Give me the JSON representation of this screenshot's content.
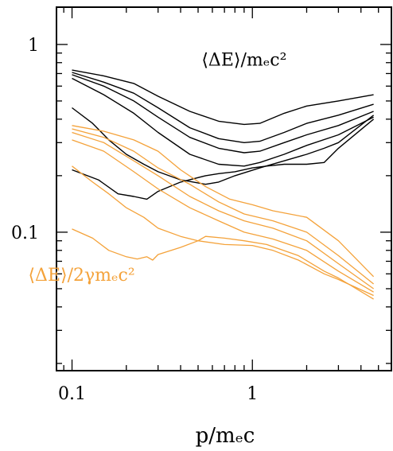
{
  "chart_data": {
    "type": "line",
    "xlabel": "p/mₑc",
    "ylabel": "",
    "xscale": "log",
    "yscale": "log",
    "xlim": [
      0.082,
      5.9
    ],
    "ylim": [
      0.0183,
      1.58
    ],
    "x_ticks": [
      {
        "value": 0.1,
        "label": "0.1"
      },
      {
        "value": 1,
        "label": "1"
      }
    ],
    "y_ticks": [
      {
        "value": 0.1,
        "label": "0.1"
      },
      {
        "value": 1,
        "label": "1"
      }
    ],
    "colors": {
      "black_group": "#000000",
      "orange_group": "#f4a23a"
    },
    "annotations": [
      {
        "text": "⟨ΔE⟩/mₑc²",
        "color": "#000000",
        "anchor": [
          0.9,
          0.77
        ]
      },
      {
        "text": "⟨ΔE⟩/2γmₑc²",
        "color": "#f4a23a",
        "anchor": [
          0.113,
          0.055
        ]
      }
    ],
    "series": [
      {
        "group": "black",
        "color": "#000000",
        "points": [
          [
            0.1,
            0.73
          ],
          [
            0.15,
            0.68
          ],
          [
            0.22,
            0.62
          ],
          [
            0.3,
            0.53
          ],
          [
            0.45,
            0.44
          ],
          [
            0.65,
            0.39
          ],
          [
            0.9,
            0.375
          ],
          [
            1.1,
            0.38
          ],
          [
            1.5,
            0.43
          ],
          [
            2,
            0.47
          ],
          [
            3,
            0.5
          ],
          [
            4.7,
            0.54
          ]
        ]
      },
      {
        "group": "black",
        "color": "#000000",
        "points": [
          [
            0.1,
            0.71
          ],
          [
            0.15,
            0.63
          ],
          [
            0.22,
            0.55
          ],
          [
            0.3,
            0.46
          ],
          [
            0.45,
            0.36
          ],
          [
            0.65,
            0.315
          ],
          [
            0.9,
            0.3
          ],
          [
            1.1,
            0.305
          ],
          [
            1.5,
            0.34
          ],
          [
            2,
            0.38
          ],
          [
            3,
            0.42
          ],
          [
            4.7,
            0.48
          ]
        ]
      },
      {
        "group": "black",
        "color": "#000000",
        "points": [
          [
            0.1,
            0.69
          ],
          [
            0.15,
            0.6
          ],
          [
            0.22,
            0.5
          ],
          [
            0.3,
            0.41
          ],
          [
            0.45,
            0.32
          ],
          [
            0.65,
            0.28
          ],
          [
            0.9,
            0.265
          ],
          [
            1.1,
            0.27
          ],
          [
            1.5,
            0.3
          ],
          [
            2,
            0.33
          ],
          [
            3,
            0.37
          ],
          [
            4.7,
            0.44
          ]
        ]
      },
      {
        "group": "black",
        "color": "#000000",
        "points": [
          [
            0.1,
            0.66
          ],
          [
            0.15,
            0.54
          ],
          [
            0.22,
            0.43
          ],
          [
            0.3,
            0.34
          ],
          [
            0.45,
            0.26
          ],
          [
            0.65,
            0.23
          ],
          [
            0.9,
            0.225
          ],
          [
            1.1,
            0.235
          ],
          [
            1.5,
            0.26
          ],
          [
            2,
            0.29
          ],
          [
            3,
            0.33
          ],
          [
            4.7,
            0.41
          ]
        ]
      },
      {
        "group": "black",
        "color": "#000000",
        "points": [
          [
            0.1,
            0.46
          ],
          [
            0.13,
            0.38
          ],
          [
            0.16,
            0.31
          ],
          [
            0.2,
            0.26
          ],
          [
            0.25,
            0.23
          ],
          [
            0.3,
            0.21
          ],
          [
            0.4,
            0.19
          ],
          [
            0.55,
            0.18
          ],
          [
            0.65,
            0.185
          ],
          [
            0.8,
            0.2
          ],
          [
            1.1,
            0.22
          ],
          [
            1.5,
            0.24
          ],
          [
            2,
            0.26
          ],
          [
            2.5,
            0.28
          ],
          [
            3,
            0.3
          ],
          [
            4.7,
            0.42
          ]
        ]
      },
      {
        "group": "black",
        "color": "#000000",
        "points": [
          [
            0.1,
            0.215
          ],
          [
            0.14,
            0.19
          ],
          [
            0.18,
            0.16
          ],
          [
            0.22,
            0.155
          ],
          [
            0.26,
            0.15
          ],
          [
            0.3,
            0.165
          ],
          [
            0.4,
            0.185
          ],
          [
            0.55,
            0.2
          ],
          [
            0.65,
            0.205
          ],
          [
            0.8,
            0.21
          ],
          [
            1,
            0.22
          ],
          [
            1.2,
            0.225
          ],
          [
            1.5,
            0.23
          ],
          [
            2,
            0.23
          ],
          [
            2.5,
            0.235
          ],
          [
            3,
            0.28
          ],
          [
            4.7,
            0.4
          ]
        ]
      },
      {
        "group": "orange",
        "color": "#f4a23a",
        "points": [
          [
            0.1,
            0.37
          ],
          [
            0.15,
            0.345
          ],
          [
            0.22,
            0.31
          ],
          [
            0.3,
            0.27
          ],
          [
            0.4,
            0.215
          ],
          [
            0.55,
            0.175
          ],
          [
            0.75,
            0.15
          ],
          [
            1,
            0.14
          ],
          [
            1.3,
            0.13
          ],
          [
            2,
            0.12
          ],
          [
            3,
            0.09
          ],
          [
            4.7,
            0.058
          ]
        ]
      },
      {
        "group": "orange",
        "color": "#f4a23a",
        "points": [
          [
            0.1,
            0.355
          ],
          [
            0.15,
            0.32
          ],
          [
            0.22,
            0.27
          ],
          [
            0.3,
            0.22
          ],
          [
            0.45,
            0.18
          ],
          [
            0.65,
            0.145
          ],
          [
            0.9,
            0.125
          ],
          [
            1.3,
            0.115
          ],
          [
            2,
            0.1
          ],
          [
            3,
            0.075
          ],
          [
            4.7,
            0.053
          ]
        ]
      },
      {
        "group": "orange",
        "color": "#f4a23a",
        "points": [
          [
            0.1,
            0.34
          ],
          [
            0.15,
            0.3
          ],
          [
            0.22,
            0.24
          ],
          [
            0.3,
            0.2
          ],
          [
            0.45,
            0.155
          ],
          [
            0.65,
            0.13
          ],
          [
            0.9,
            0.115
          ],
          [
            1.3,
            0.105
          ],
          [
            2,
            0.09
          ],
          [
            3,
            0.068
          ],
          [
            4.7,
            0.05
          ]
        ]
      },
      {
        "group": "orange",
        "color": "#f4a23a",
        "points": [
          [
            0.1,
            0.31
          ],
          [
            0.15,
            0.27
          ],
          [
            0.22,
            0.21
          ],
          [
            0.3,
            0.17
          ],
          [
            0.45,
            0.135
          ],
          [
            0.65,
            0.115
          ],
          [
            0.9,
            0.1
          ],
          [
            1.3,
            0.092
          ],
          [
            2,
            0.08
          ],
          [
            3,
            0.062
          ],
          [
            4.7,
            0.048
          ]
        ]
      },
      {
        "group": "orange",
        "color": "#f4a23a",
        "points": [
          [
            0.1,
            0.225
          ],
          [
            0.13,
            0.185
          ],
          [
            0.16,
            0.16
          ],
          [
            0.2,
            0.135
          ],
          [
            0.25,
            0.12
          ],
          [
            0.3,
            0.105
          ],
          [
            0.4,
            0.095
          ],
          [
            0.5,
            0.09
          ],
          [
            0.7,
            0.086
          ],
          [
            1,
            0.085
          ],
          [
            1.3,
            0.08
          ],
          [
            1.8,
            0.071
          ],
          [
            2.5,
            0.06
          ],
          [
            3,
            0.056
          ],
          [
            4.7,
            0.046
          ]
        ]
      },
      {
        "group": "orange",
        "color": "#f4a23a",
        "points": [
          [
            0.1,
            0.104
          ],
          [
            0.13,
            0.093
          ],
          [
            0.16,
            0.08
          ],
          [
            0.2,
            0.074
          ],
          [
            0.23,
            0.072
          ],
          [
            0.26,
            0.074
          ],
          [
            0.28,
            0.071
          ],
          [
            0.3,
            0.076
          ],
          [
            0.4,
            0.083
          ],
          [
            0.5,
            0.09
          ],
          [
            0.55,
            0.095
          ],
          [
            0.7,
            0.093
          ],
          [
            0.9,
            0.09
          ],
          [
            1.2,
            0.086
          ],
          [
            1.8,
            0.075
          ],
          [
            2.5,
            0.062
          ],
          [
            3,
            0.057
          ],
          [
            4.7,
            0.044
          ]
        ]
      }
    ]
  }
}
